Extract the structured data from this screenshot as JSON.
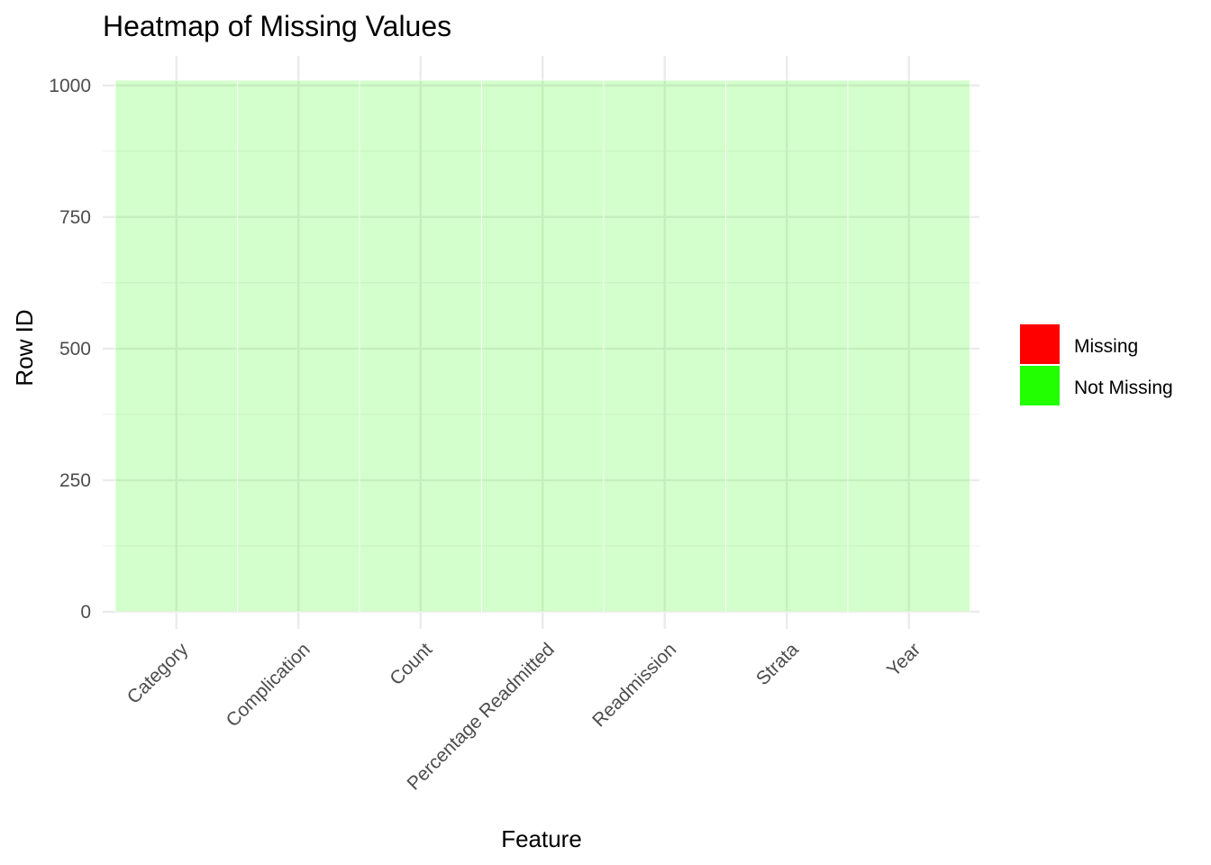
{
  "chart_data": {
    "type": "heatmap",
    "title": "Heatmap of Missing Values",
    "xlabel": "Feature",
    "ylabel": "Row ID",
    "categories": [
      "Category",
      "Complication",
      "Count",
      "Percentage Readmitted",
      "Readmission",
      "Strata",
      "Year"
    ],
    "row_range": [
      1,
      1010
    ],
    "ylim": [
      0,
      1010
    ],
    "yticks": [
      0,
      250,
      500,
      750,
      1000
    ],
    "grid": true,
    "legend_position": "right",
    "legend": [
      {
        "label": "Missing",
        "color": "#ff0000"
      },
      {
        "label": "Not Missing",
        "color": "#22ff00"
      }
    ],
    "cell_status": {
      "Category": "Not Missing",
      "Complication": "Not Missing",
      "Count": "Not Missing",
      "Percentage Readmitted": "Not Missing",
      "Readmission": "Not Missing",
      "Strata": "Not Missing",
      "Year": "Not Missing"
    },
    "tile_alpha": 0.2
  }
}
